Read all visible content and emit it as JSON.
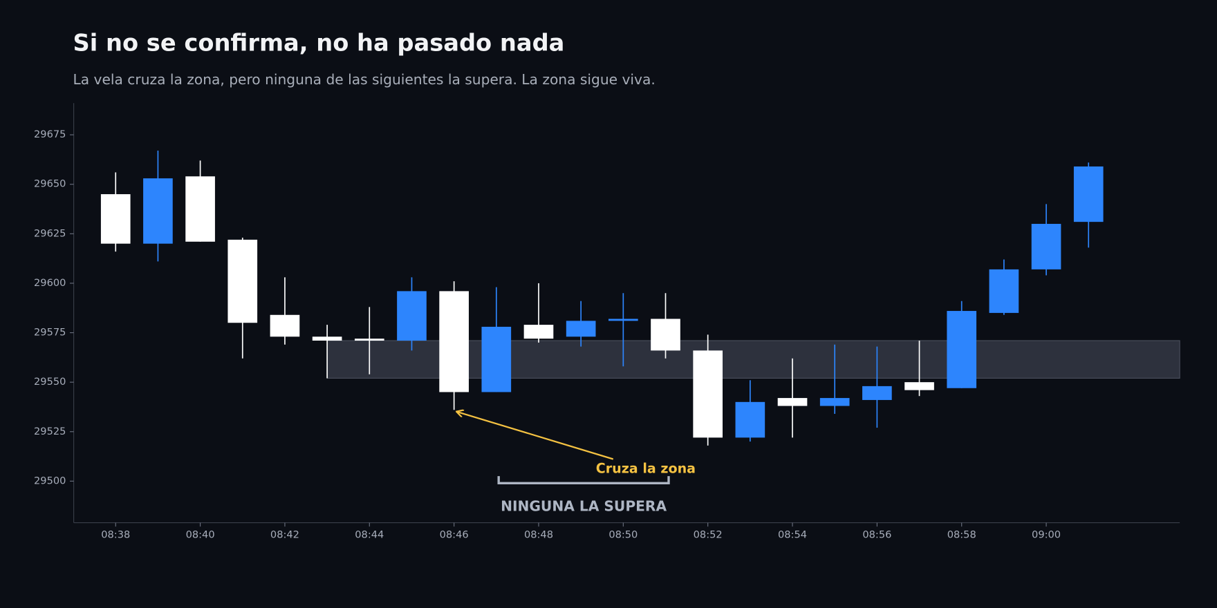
{
  "chart_data": {
    "type": "candlestick",
    "title": "Si no se confirma, no ha pasado nada",
    "subtitle": "La vela cruza la zona, pero ninguna de las siguientes la supera. La zona sigue viva.",
    "categories": [
      "08:38",
      null,
      "08:40",
      null,
      "08:42",
      null,
      "08:44",
      null,
      "08:46",
      null,
      "08:48",
      null,
      "08:50",
      null,
      "08:52",
      null,
      "08:54",
      null,
      "08:56",
      null,
      "08:58",
      null,
      "09:00",
      null
    ],
    "open": [
      29645,
      29620,
      29654,
      29622,
      29584,
      29573,
      29572,
      29571,
      29596,
      29545,
      29579,
      29573,
      29581,
      29582,
      29566,
      29522,
      29542,
      29538,
      29541,
      29550,
      29547,
      29585,
      29607,
      29631
    ],
    "high": [
      29656,
      29667,
      29662,
      29623,
      29603,
      29579,
      29588,
      29603,
      29601,
      29598,
      29600,
      29591,
      29595,
      29595,
      29574,
      29551,
      29562,
      29569,
      29568,
      29571,
      29591,
      29612,
      29640,
      29661
    ],
    "low": [
      29616,
      29611,
      29621,
      29562,
      29569,
      29552,
      29554,
      29566,
      29536,
      29545,
      29570,
      29568,
      29558,
      29562,
      29518,
      29520,
      29522,
      29534,
      29527,
      29543,
      29547,
      29584,
      29604,
      29618
    ],
    "close": [
      29620,
      29653,
      29621,
      29580,
      29573,
      29571,
      29571,
      29596,
      29545,
      29578,
      29572,
      29581,
      29582,
      29566,
      29522,
      29540,
      29538,
      29542,
      29548,
      29546,
      29586,
      29607,
      29630,
      29659
    ],
    "up_color": "#2d85fd",
    "down_color": "#ffffff",
    "ylim": [
      29479,
      29691
    ],
    "yticks": [
      29500,
      29525,
      29550,
      29575,
      29600,
      29625,
      29650,
      29675
    ],
    "zone": {
      "low": 29552,
      "high": 29571,
      "color": "#2d313d"
    },
    "annotations": [
      {
        "text": "Cruza la zona",
        "color": "#f5c242"
      },
      {
        "text": "NINGUNA LA SUPERA",
        "color": "#aeb6c4"
      }
    ]
  }
}
